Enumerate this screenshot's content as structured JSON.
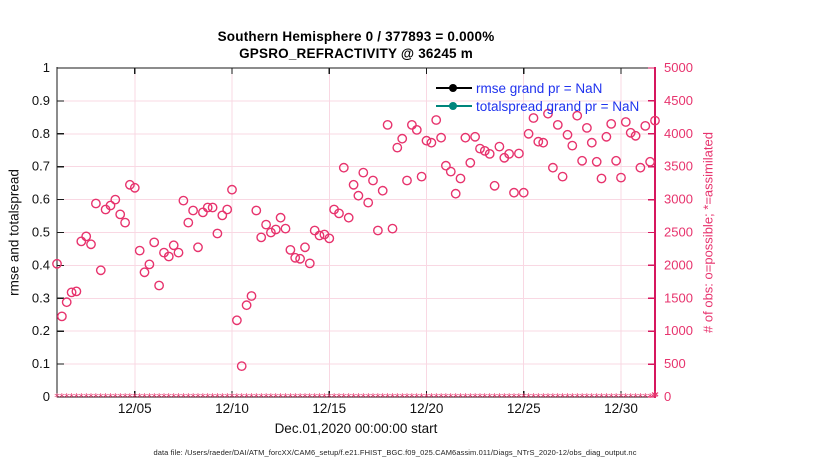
{
  "figure": {
    "title_line1": "Southern Hemisphere 0 / 377893 = 0.000%",
    "title_line2": "GPSRO_REFRACTIVITY @ 36245 m",
    "xlabel": "Dec.01,2020 00:00:00 start",
    "ylabel_left": "rmse and totalspread",
    "ylabel_right": "# of obs: o=possible; *=assimilated",
    "footer": "data file: /Users/raeder/DAI/ATM_forcXX/CAM6_setup/f.e21.FHIST_BGC.f09_025.CAM6assim.011/Diags_NTrS_2020-12/obs_diag_output.nc"
  },
  "legend": {
    "items": [
      {
        "label": "rmse grand pr = NaN",
        "color": "#000000"
      },
      {
        "label": "totalspread grand pr = NaN",
        "color": "#00857c"
      }
    ],
    "text_color": "#2033ee"
  },
  "colors": {
    "pink_marker": "#e7336d",
    "pink_axis": "#d6175e",
    "grid": "#f9d8e3",
    "axis_black": "#1a1a1a"
  },
  "chart_data": {
    "type": "scatter",
    "title": [
      "Southern Hemisphere 0 / 377893 = 0.000%",
      "GPSRO_REFRACTIVITY @ 36245 m"
    ],
    "xlabel": "Dec.01,2020 00:00:00 start",
    "grid": true,
    "legend_position": "top-right-inside",
    "x_axis": {
      "meaning": "day of December 2020",
      "domain_days": [
        1,
        31.75
      ],
      "tick_days": [
        5,
        10,
        15,
        20,
        25,
        30
      ],
      "tick_labels": [
        "12/05",
        "12/10",
        "12/15",
        "12/20",
        "12/25",
        "12/30"
      ]
    },
    "y_left": {
      "label": "rmse and totalspread",
      "range": [
        0,
        1
      ],
      "tick_labels": [
        "0",
        "0.1",
        "0.2",
        "0.3",
        "0.4",
        "0.5",
        "0.6",
        "0.7",
        "0.8",
        "0.9",
        "1"
      ]
    },
    "y_right": {
      "label": "# of obs: o=possible; *=assimilated",
      "range": [
        0,
        5000
      ],
      "tick_labels": [
        "0",
        "500",
        "1000",
        "1500",
        "2000",
        "2500",
        "3000",
        "3500",
        "4000",
        "4500",
        "5000"
      ]
    },
    "series": [
      {
        "name": "rmse",
        "legend": "rmse grand pr = NaN",
        "color": "#000000",
        "axis": "left",
        "values": "NaN"
      },
      {
        "name": "totalspread",
        "legend": "totalspread grand pr = NaN",
        "color": "#00857c",
        "axis": "left",
        "values": "NaN"
      },
      {
        "name": "possible_obs",
        "marker": "o",
        "axis": "right",
        "color": "#e7336d",
        "points": [
          [
            1.0,
            2025
          ],
          [
            1.25,
            1225
          ],
          [
            1.5,
            1440
          ],
          [
            1.75,
            1590
          ],
          [
            2.0,
            1605
          ],
          [
            2.25,
            2365
          ],
          [
            2.5,
            2440
          ],
          [
            2.75,
            2320
          ],
          [
            3.0,
            2940
          ],
          [
            3.25,
            1925
          ],
          [
            3.5,
            2850
          ],
          [
            3.75,
            2910
          ],
          [
            4.0,
            3000
          ],
          [
            4.25,
            2775
          ],
          [
            4.5,
            2650
          ],
          [
            4.75,
            3225
          ],
          [
            5.0,
            3180
          ],
          [
            5.25,
            2225
          ],
          [
            5.5,
            1895
          ],
          [
            5.75,
            2015
          ],
          [
            6.0,
            2350
          ],
          [
            6.25,
            1695
          ],
          [
            6.5,
            2195
          ],
          [
            6.75,
            2135
          ],
          [
            7.0,
            2305
          ],
          [
            7.25,
            2195
          ],
          [
            7.5,
            2985
          ],
          [
            7.75,
            2650
          ],
          [
            8.0,
            2835
          ],
          [
            8.25,
            2275
          ],
          [
            8.5,
            2805
          ],
          [
            8.75,
            2880
          ],
          [
            9.0,
            2880
          ],
          [
            9.25,
            2485
          ],
          [
            9.5,
            2760
          ],
          [
            9.75,
            2850
          ],
          [
            10.0,
            3150
          ],
          [
            10.25,
            1165
          ],
          [
            10.5,
            470
          ],
          [
            10.75,
            1395
          ],
          [
            11.0,
            1535
          ],
          [
            11.25,
            2835
          ],
          [
            11.5,
            2425
          ],
          [
            11.75,
            2620
          ],
          [
            12.0,
            2500
          ],
          [
            12.25,
            2545
          ],
          [
            12.5,
            2725
          ],
          [
            12.75,
            2560
          ],
          [
            13.0,
            2235
          ],
          [
            13.25,
            2115
          ],
          [
            13.5,
            2100
          ],
          [
            13.75,
            2275
          ],
          [
            14.0,
            2030
          ],
          [
            14.25,
            2530
          ],
          [
            14.5,
            2455
          ],
          [
            14.75,
            2470
          ],
          [
            15.0,
            2410
          ],
          [
            15.25,
            2850
          ],
          [
            15.5,
            2790
          ],
          [
            15.75,
            3485
          ],
          [
            16.0,
            2725
          ],
          [
            16.25,
            3225
          ],
          [
            16.5,
            3060
          ],
          [
            16.75,
            3410
          ],
          [
            17.0,
            2955
          ],
          [
            17.25,
            3290
          ],
          [
            17.5,
            2530
          ],
          [
            17.75,
            3135
          ],
          [
            18.0,
            4135
          ],
          [
            18.25,
            2560
          ],
          [
            18.5,
            3790
          ],
          [
            18.75,
            3925
          ],
          [
            19.0,
            3290
          ],
          [
            19.25,
            4135
          ],
          [
            19.5,
            4060
          ],
          [
            19.75,
            3350
          ],
          [
            20.0,
            3895
          ],
          [
            20.25,
            3865
          ],
          [
            20.5,
            4210
          ],
          [
            20.75,
            3940
          ],
          [
            21.0,
            3515
          ],
          [
            21.25,
            3425
          ],
          [
            21.5,
            3090
          ],
          [
            21.75,
            3320
          ],
          [
            22.0,
            3940
          ],
          [
            22.25,
            3560
          ],
          [
            22.5,
            3955
          ],
          [
            22.75,
            3775
          ],
          [
            23.0,
            3740
          ],
          [
            23.25,
            3695
          ],
          [
            23.5,
            3210
          ],
          [
            23.75,
            3805
          ],
          [
            24.0,
            3635
          ],
          [
            24.25,
            3695
          ],
          [
            24.5,
            3105
          ],
          [
            24.75,
            3700
          ],
          [
            25.0,
            3105
          ],
          [
            25.25,
            4000
          ],
          [
            25.5,
            4240
          ],
          [
            25.75,
            3880
          ],
          [
            26.0,
            3865
          ],
          [
            26.25,
            4305
          ],
          [
            26.5,
            3485
          ],
          [
            26.75,
            4135
          ],
          [
            27.0,
            3350
          ],
          [
            27.25,
            3985
          ],
          [
            27.5,
            3820
          ],
          [
            27.75,
            4275
          ],
          [
            28.0,
            3590
          ],
          [
            28.25,
            4090
          ],
          [
            28.5,
            3865
          ],
          [
            28.75,
            3575
          ],
          [
            29.0,
            3320
          ],
          [
            29.25,
            3955
          ],
          [
            29.5,
            4150
          ],
          [
            29.75,
            3590
          ],
          [
            30.0,
            3335
          ],
          [
            30.25,
            4180
          ],
          [
            30.5,
            4015
          ],
          [
            30.75,
            3970
          ],
          [
            31.0,
            3485
          ],
          [
            31.25,
            4120
          ],
          [
            31.5,
            3575
          ],
          [
            31.75,
            4200
          ]
        ]
      },
      {
        "name": "assimilated_obs",
        "marker": "*",
        "axis": "right",
        "color": "#e7336d",
        "constant_value": 0,
        "t_start": 1.0,
        "t_end": 31.75,
        "t_step": 0.25
      }
    ]
  }
}
